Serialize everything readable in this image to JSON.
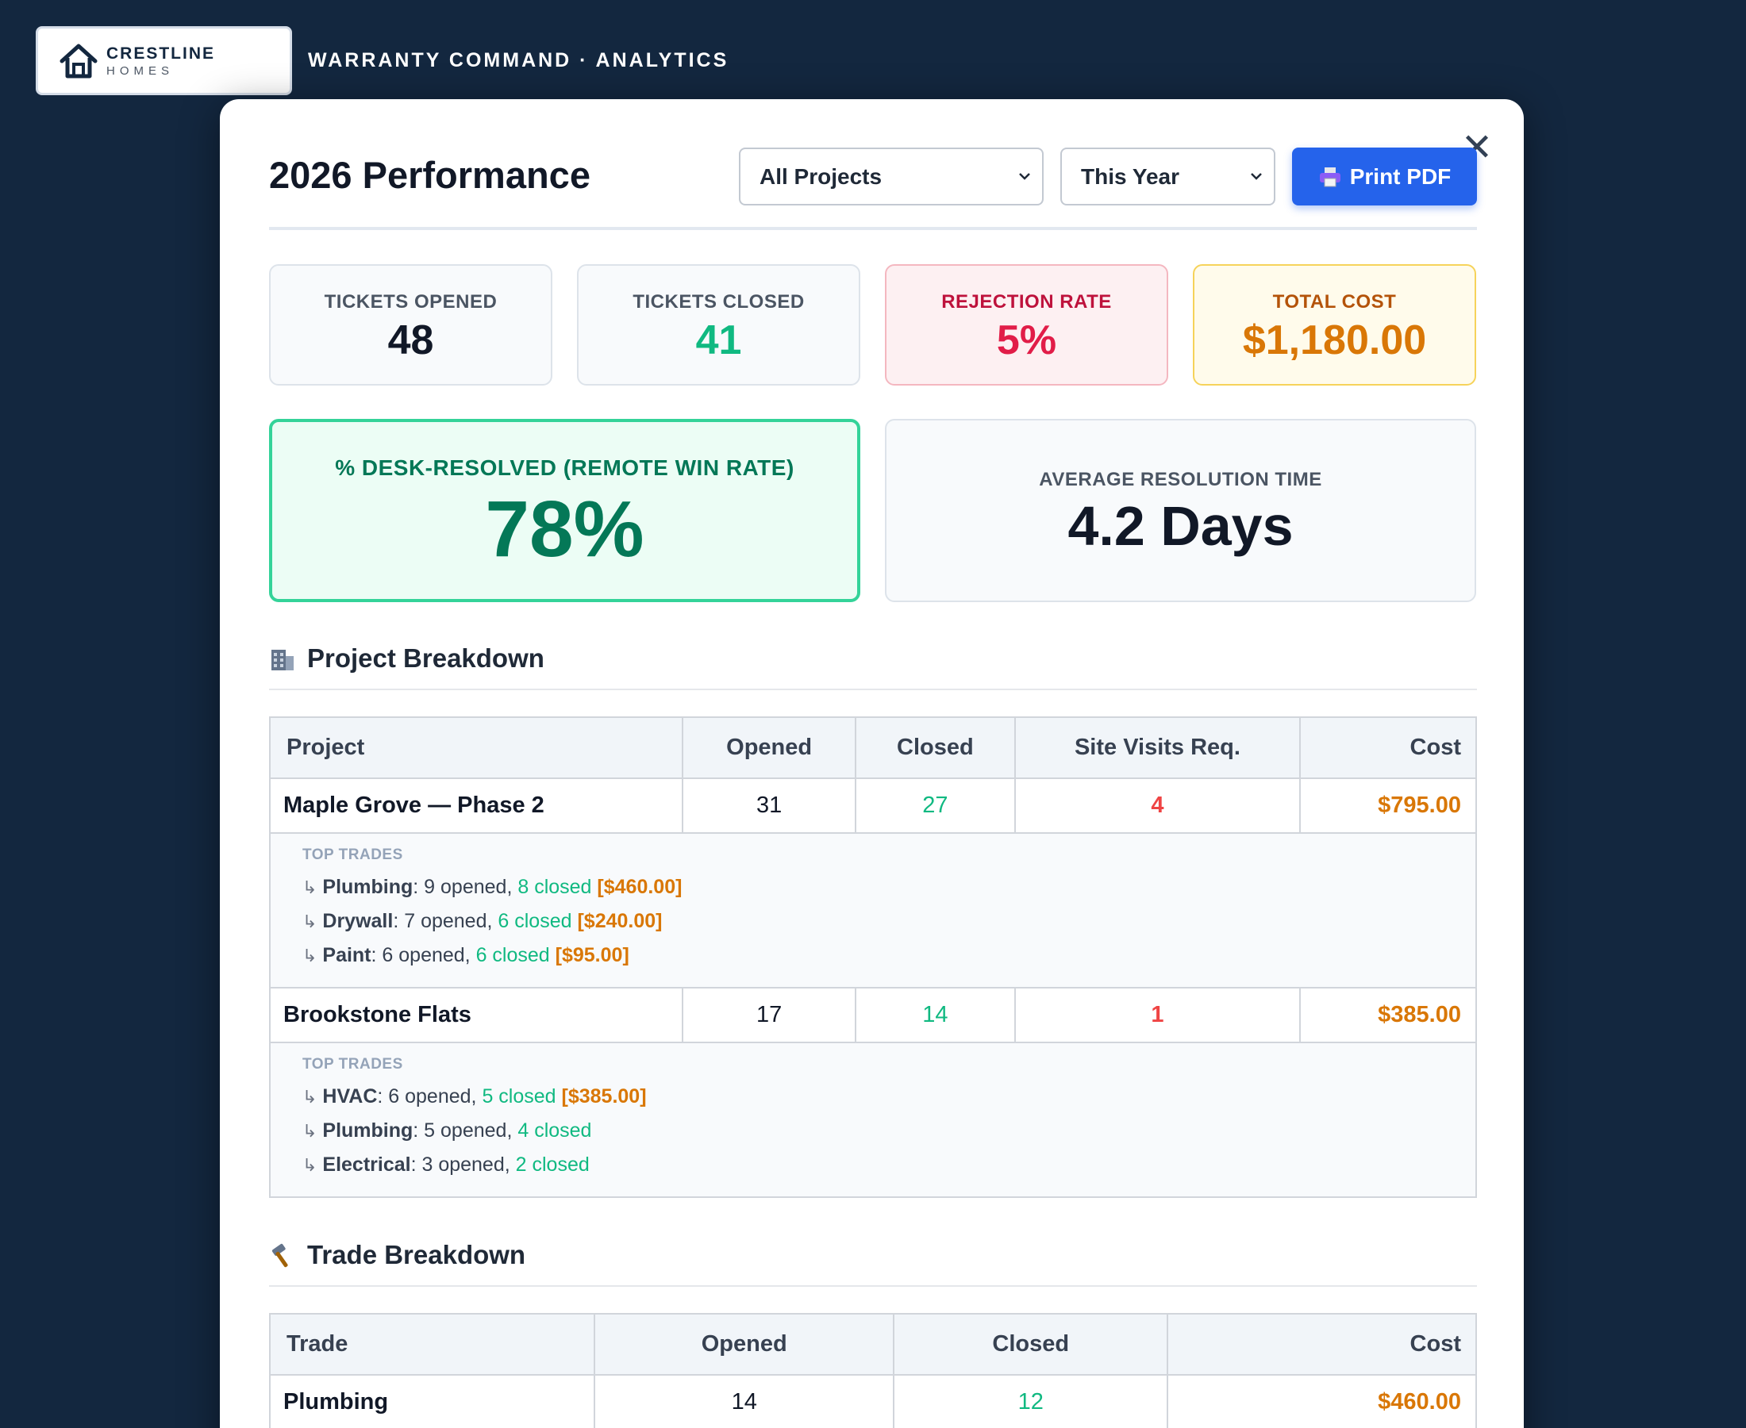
{
  "brand": {
    "name": "CRESTLINE",
    "sub": "HOMES",
    "app_title": "WARRANTY COMMAND · ANALYTICS"
  },
  "modal": {
    "title": "2026 Performance",
    "close_label": "✕",
    "project_filter": "All Projects",
    "period_filter": "This Year",
    "print_label": "Print PDF"
  },
  "kpis": {
    "opened": {
      "label": "TICKETS OPENED",
      "value": "48"
    },
    "closed": {
      "label": "TICKETS CLOSED",
      "value": "41"
    },
    "rejection": {
      "label": "REJECTION RATE",
      "value": "5%"
    },
    "cost": {
      "label": "TOTAL COST",
      "value": "$1,180.00"
    },
    "desk": {
      "label": "% DESK-RESOLVED (REMOTE WIN RATE)",
      "value": "78%"
    },
    "avg": {
      "label": "AVERAGE RESOLUTION TIME",
      "value": "4.2 Days"
    }
  },
  "project_section": {
    "title": "Project Breakdown",
    "headers": [
      "Project",
      "Opened",
      "Closed",
      "Site Visits Req.",
      "Cost"
    ],
    "top_trades_label": "TOP TRADES",
    "rows": [
      {
        "name": "Maple Grove — Phase 2",
        "opened": "31",
        "closed": "27",
        "visits": "4",
        "cost": "$795.00",
        "trades": [
          {
            "arrow": "↳",
            "name": "Plumbing",
            "opened": ": 9 opened, ",
            "closed": "8 closed",
            "cost": " [$460.00]"
          },
          {
            "arrow": "↳",
            "name": "Drywall",
            "opened": ": 7 opened, ",
            "closed": "6 closed",
            "cost": " [$240.00]"
          },
          {
            "arrow": "↳",
            "name": "Paint",
            "opened": ": 6 opened, ",
            "closed": "6 closed",
            "cost": " [$95.00]"
          }
        ]
      },
      {
        "name": "Brookstone Flats",
        "opened": "17",
        "closed": "14",
        "visits": "1",
        "cost": "$385.00",
        "trades": [
          {
            "arrow": "↳",
            "name": "HVAC",
            "opened": ": 6 opened, ",
            "closed": "5 closed",
            "cost": " [$385.00]"
          },
          {
            "arrow": "↳",
            "name": "Plumbing",
            "opened": ": 5 opened, ",
            "closed": "4 closed",
            "cost": ""
          },
          {
            "arrow": "↳",
            "name": "Electrical",
            "opened": ": 3 opened, ",
            "closed": "2 closed",
            "cost": ""
          }
        ]
      }
    ]
  },
  "trade_section": {
    "title": "Trade Breakdown",
    "headers": [
      "Trade",
      "Opened",
      "Closed",
      "Cost"
    ],
    "rows": [
      {
        "name": "Plumbing",
        "opened": "14",
        "closed": "12",
        "cost": "$460.00"
      }
    ]
  }
}
